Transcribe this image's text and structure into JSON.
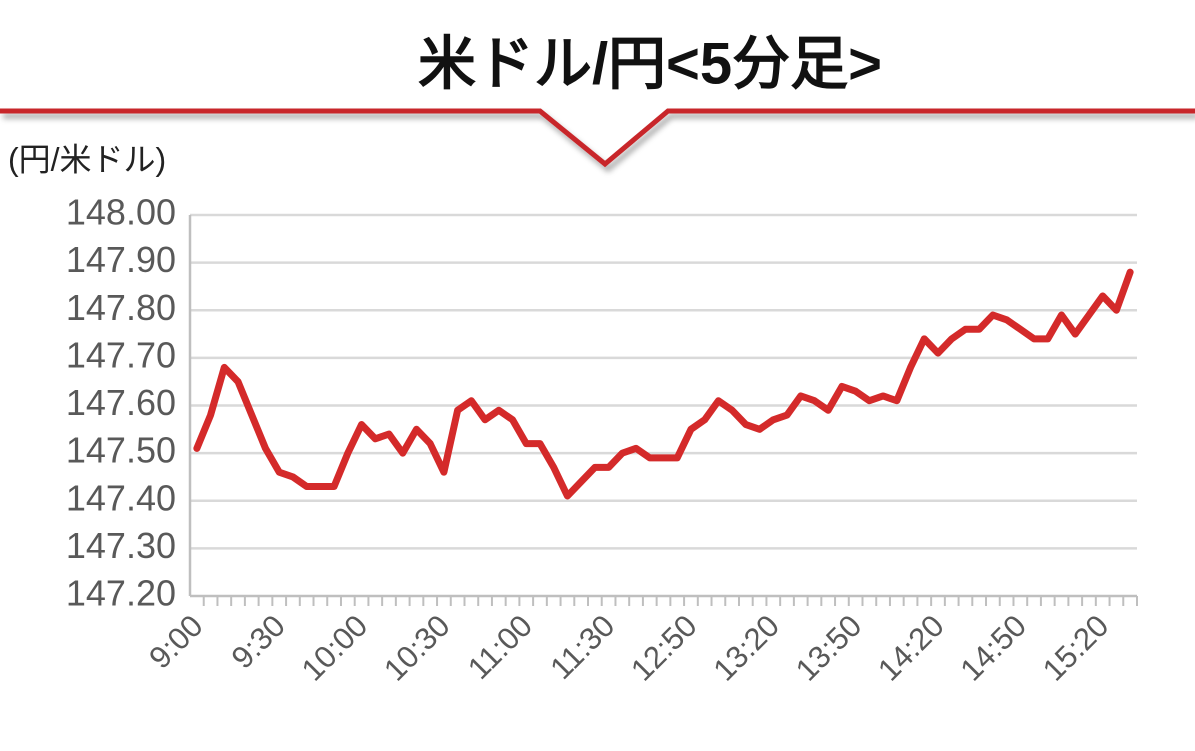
{
  "chart_data": {
    "type": "line",
    "title": "米ドル/円<5分足>",
    "y_label": "(円/米ドル)",
    "categories": [
      "9:00",
      null,
      null,
      null,
      null,
      null,
      "9:30",
      null,
      null,
      null,
      null,
      null,
      "10:00",
      null,
      null,
      null,
      null,
      null,
      "10:30",
      null,
      null,
      null,
      null,
      null,
      "11:00",
      null,
      null,
      null,
      null,
      null,
      "11:30",
      null,
      null,
      null,
      null,
      null,
      "12:50",
      null,
      null,
      null,
      null,
      null,
      "13:20",
      null,
      null,
      null,
      null,
      null,
      "13:50",
      null,
      null,
      null,
      null,
      null,
      "14:20",
      null,
      null,
      null,
      null,
      null,
      "14:50",
      null,
      null,
      null,
      null,
      null,
      "15:20",
      null,
      null
    ],
    "series": [
      {
        "name": "米ドル/円",
        "color": "#d42a2a",
        "values": [
          147.51,
          147.58,
          147.68,
          147.65,
          147.58,
          147.51,
          147.46,
          147.45,
          147.43,
          147.43,
          147.43,
          147.5,
          147.56,
          147.53,
          147.54,
          147.5,
          147.55,
          147.52,
          147.46,
          147.59,
          147.61,
          147.57,
          147.59,
          147.57,
          147.52,
          147.52,
          147.47,
          147.41,
          147.44,
          147.47,
          147.47,
          147.5,
          147.51,
          147.49,
          147.49,
          147.49,
          147.55,
          147.57,
          147.61,
          147.59,
          147.56,
          147.55,
          147.57,
          147.58,
          147.62,
          147.61,
          147.59,
          147.64,
          147.63,
          147.61,
          147.62,
          147.61,
          147.68,
          147.74,
          147.71,
          147.74,
          147.76,
          147.76,
          147.79,
          147.78,
          147.76,
          147.74,
          147.74,
          147.79,
          147.75,
          147.79,
          147.83,
          147.8,
          147.88
        ]
      }
    ],
    "ylim": [
      147.2,
      148.0
    ],
    "yticks": [
      {
        "value": 147.2,
        "label": "147.20"
      },
      {
        "value": 147.3,
        "label": "147.30"
      },
      {
        "value": 147.4,
        "label": "147.40"
      },
      {
        "value": 147.5,
        "label": "147.50"
      },
      {
        "value": 147.6,
        "label": "147.60"
      },
      {
        "value": 147.7,
        "label": "147.70"
      },
      {
        "value": 147.8,
        "label": "147.80"
      },
      {
        "value": 147.9,
        "label": "147.90"
      },
      {
        "value": 148.0,
        "label": "148.00"
      }
    ],
    "grid": true
  }
}
